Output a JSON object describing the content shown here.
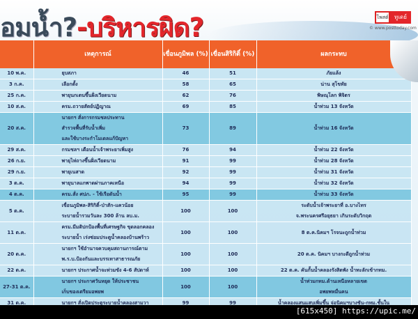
{
  "title": {
    "part1": "อมน้ำ?",
    "part2": "-บริหารผิด?"
  },
  "logo": {
    "left": "โพสต์",
    "right": "ทูเดย์",
    "url": "© www.posttoday.com"
  },
  "headers": [
    "",
    "เหตุการณ์",
    "เขื่อนภูมิพล (%)",
    "เขื่อนสิริกิติ์ (%)",
    "ผลกระทบ"
  ],
  "rows": [
    {
      "date": "10 พ.ค.",
      "event": [
        "ยุบสภา"
      ],
      "bhumibol": "46",
      "sirikit": "51",
      "impact": [
        "ภัยแล้ง"
      ]
    },
    {
      "date": "3 ก.ค.",
      "event": [
        "เลือกตั้ง"
      ],
      "bhumibol": "58",
      "sirikit": "65",
      "impact": [
        "น่าน สุโขทัย"
      ]
    },
    {
      "date": "25 ก.ค.",
      "event": [
        "พายุนกเตนขึ้นฝั่งเวียดนาม"
      ],
      "bhumibol": "62",
      "sirikit": "76",
      "impact": [
        "พิษณุโลก พิจิตร"
      ]
    },
    {
      "date": "10 ส.ค.",
      "event": [
        "ครม.ถวายสัตย์ปฏิญาณ"
      ],
      "bhumibol": "69",
      "sirikit": "85",
      "impact": [
        "น้ำท่วม 13 จังหวัด"
      ]
    },
    {
      "date": "20 ส.ค.",
      "event": [
        "นายกฯ สั่งการกรมชลประทาน",
        "สำรวจพื้นที่รับน้ำเพิ่ม",
        "และใช้บางระกำโมเดลแก้ปัญหา"
      ],
      "bhumibol": "73",
      "sirikit": "89",
      "impact": [
        "น้ำท่วม 16 จังหวัด"
      ]
    },
    {
      "date": "29 ส.ค.",
      "event": [
        "กรมชลฯ เตือนน้ำเจ้าพระยาเพิ่มสูง"
      ],
      "bhumibol": "76",
      "sirikit": "94",
      "impact": [
        "น้ำท่วม 22 จังหวัด"
      ]
    },
    {
      "date": "26 ก.ย.",
      "event": [
        "พายุไห่ถางขึ้นฝั่งเวียดนาม"
      ],
      "bhumibol": "91",
      "sirikit": "99",
      "impact": [
        "น้ำท่วม 28 จังหวัด"
      ]
    },
    {
      "date": "29 ก.ย.",
      "event": [
        "พายุเนสาด"
      ],
      "bhumibol": "92",
      "sirikit": "99",
      "impact": [
        "น้ำท่วม 31 จังหวัด"
      ]
    },
    {
      "date": "3 ต.ค.",
      "event": [
        "พายุนาลแกพาดผ่านภาคเหนือ"
      ],
      "bhumibol": "94",
      "sirikit": "99",
      "impact": [
        "น้ำท่วม 32 จังหวัด"
      ]
    },
    {
      "date": "4 ต.ค.",
      "event": [
        "ครม.สั่ง ศปภ. - ใช้เรือดันน้ำ"
      ],
      "bhumibol": "95",
      "sirikit": "99",
      "impact": [
        "น้ำท่วม 33 จังหวัด"
      ]
    },
    {
      "date": "5 ต.ค.",
      "event": [
        "เขื่อนภูมิพล-สิริกิติ์-ป่าสัก-แควน้อย",
        "ระบายน้ำรวมวันละ 300 ล้าน ลบ.ม."
      ],
      "bhumibol": "100",
      "sirikit": "100",
      "impact": [
        "ระดับน้ำเจ้าพระยาที่ อ.บางไทร",
        "จ.พระนครศรีอยุธยา เกินระดับวิกฤต"
      ]
    },
    {
      "date": "11 ต.ค.",
      "event": [
        "ครม.มีมติปกป้องพื้นที่เศรษฐกิจ ขุดลอกคลอง",
        "ระบายน้ำ เร่งซ่อมประตูน้ำคลองบ้านพร้าว"
      ],
      "bhumibol": "100",
      "sirikit": "100",
      "impact": [
        "8 ต.ค.นิคมฯ โรจนะถูกน้ำท่วม"
      ]
    },
    {
      "date": "20 ต.ค.",
      "event": [
        "นายกฯ ใช้อำนาจควบคุมสถานการณ์ตาม",
        "พ.ร.บ.ป้องกันและบรรเทาสาธารณภัย"
      ],
      "bhumibol": "100",
      "sirikit": "100",
      "impact": [
        "20 ต.ค. นิคมฯ บางกะดีถูกน้ำท่วม"
      ]
    },
    {
      "date": "22 ต.ค.",
      "event": [
        "นายกฯ ประกาศน้ำจะท่วมขัง 4-6 สัปดาห์"
      ],
      "bhumibol": "100",
      "sirikit": "100",
      "impact": [
        "22 ต.ค. คันกั้นน้ำคลองรังสิตพัง น้ำทะลักเข้ากทม."
      ]
    },
    {
      "date": "27-31 ต.ค.",
      "event": [
        "นายกฯ ประกาศวันหยุด ให้ประชาชน",
        "เก็บของเตรียมอพยพ"
      ],
      "bhumibol": "100",
      "sirikit": "100",
      "impact": [
        "น้ำท่วมกทม.ด้านเหนือหลายเขต",
        "อพยพหมื่นคน"
      ]
    },
    {
      "date": "31 ต.ค.",
      "event": [
        "นายกฯ สั่งเปิดประตูระบายน้ำคลองสามวา"
      ],
      "bhumibol": "99",
      "sirikit": "99",
      "impact": [
        "น้ำคลองแสนแสบเพิ่มขึ้น จ่อนิคมฯบางชัน-กทม.ชั้นใน"
      ]
    }
  ],
  "row_shades": [
    "l",
    "l",
    "l",
    "l",
    "d",
    "l",
    "l",
    "l",
    "l",
    "d",
    "l",
    "l",
    "l",
    "l",
    "d",
    "l"
  ],
  "colors": {
    "header": "#f0622a",
    "title_red": "#e3262b",
    "row_light": "#c6e4f2",
    "row_dark": "#78c4de"
  },
  "watermark": "[615x450] https://upic.me/"
}
